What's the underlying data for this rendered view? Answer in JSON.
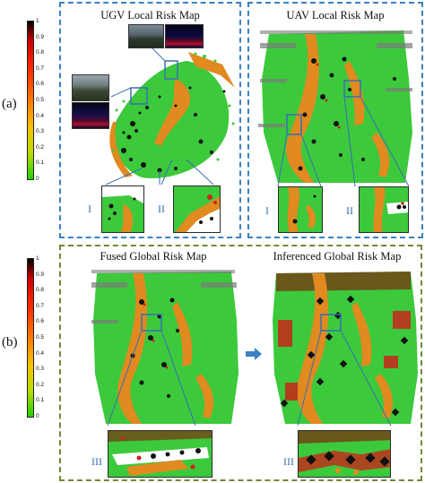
{
  "panel_labels": {
    "a": "(a)",
    "b": "(b)"
  },
  "titles": {
    "ugv": "UGV Local Risk Map",
    "uav": "UAV Local Risk Map",
    "fused": "Fused Global Risk Map",
    "inferenced": "Inferenced Global Risk Map"
  },
  "inset_labels": {
    "ugv_1": "I",
    "ugv_2": "II",
    "uav_1": "I",
    "uav_2": "II",
    "fused_3": "III",
    "inferenced_3": "III"
  },
  "colorbar": {
    "ticks": [
      "1",
      "0.9",
      "0.8",
      "0.7",
      "0.6",
      "0.5",
      "0.4",
      "0.3",
      "0.2",
      "0.1",
      "0"
    ],
    "colors": {
      "high": "#000000",
      "mid_high": "#ff2a00",
      "mid": "#ff7a00",
      "mid_low": "#f4c400",
      "low": "#22d000"
    }
  },
  "colors": {
    "frame_a": "#3a82c4",
    "frame_b": "#6e8a35",
    "arrow": "#3a82c4",
    "map_green": "#3cc93c",
    "map_orange": "#e08a20",
    "obstacle": "#111111",
    "risk_red": "#c8261a"
  },
  "icons": {
    "arrow": "right-arrow-icon"
  }
}
